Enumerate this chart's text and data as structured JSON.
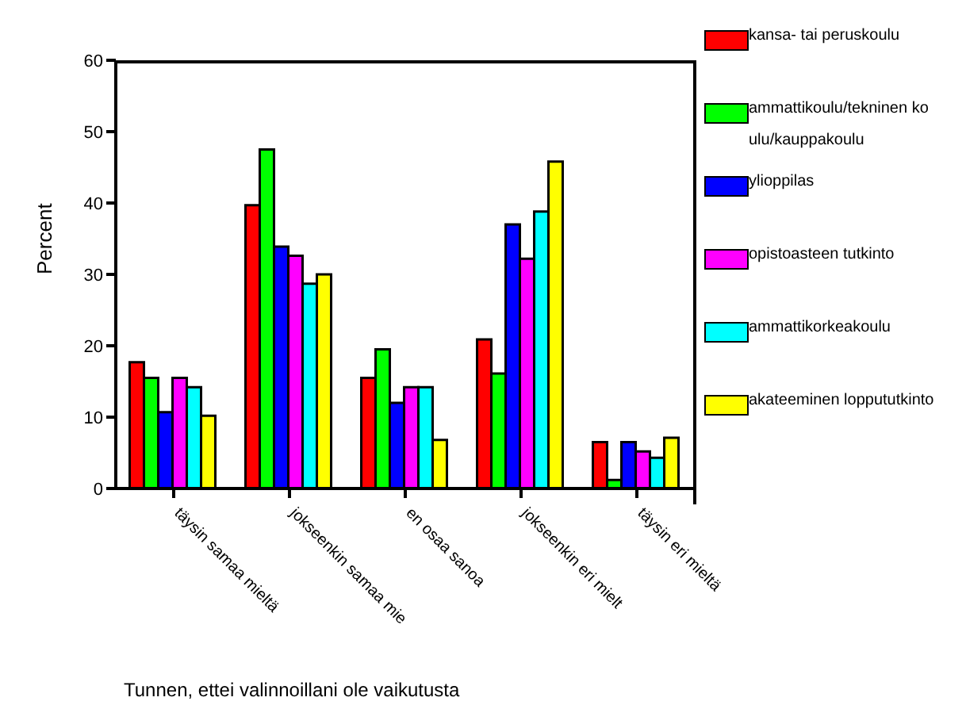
{
  "chart_data": {
    "type": "bar",
    "xlabel": "Tunnen, ettei valinnoillani ole vaikutusta",
    "ylabel": "Percent",
    "categories": [
      "täysin samaa mieltä",
      "jokseenkin samaa mie",
      "en osaa sanoa",
      "jokseenkin eri mielt",
      "täysin eri mieltä"
    ],
    "series": [
      {
        "name": "kansa- tai peruskoulu",
        "color": "#ff0000",
        "values": [
          17.7,
          39.7,
          15.5,
          20.9,
          6.5
        ]
      },
      {
        "name": "ammattikoulu/tekninen koulu/kauppakoulu",
        "color": "#00ff00",
        "values": [
          15.5,
          47.5,
          19.5,
          16.1,
          1.2
        ]
      },
      {
        "name": "ylioppilas",
        "color": "#0000ff",
        "values": [
          10.7,
          33.9,
          12.0,
          37.0,
          6.5
        ]
      },
      {
        "name": "opistoasteen tutkinto",
        "color": "#ff00ff",
        "values": [
          15.5,
          32.6,
          14.2,
          32.2,
          5.2
        ]
      },
      {
        "name": "ammattikorkeakoulu",
        "color": "#00ffff",
        "values": [
          14.2,
          28.7,
          14.2,
          38.8,
          4.3
        ]
      },
      {
        "name": "akateeminen loppututkinto",
        "color": "#ffff00",
        "values": [
          10.2,
          30.0,
          6.8,
          45.8,
          7.1
        ]
      }
    ],
    "ylim": [
      0,
      60
    ],
    "yticks": [
      0,
      10,
      20,
      30,
      40,
      50,
      60
    ],
    "grid": false,
    "legend": "top right"
  }
}
